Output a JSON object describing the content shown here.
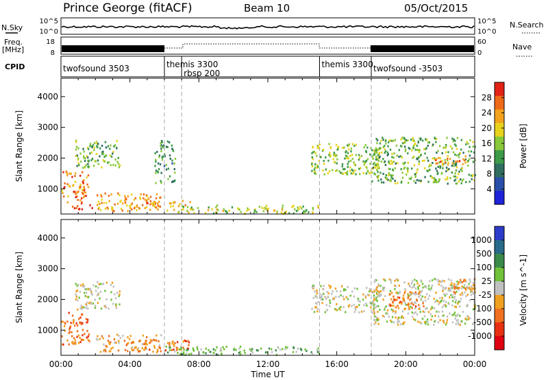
{
  "header": {
    "station": "Prince George (fitACF)",
    "beam": "Beam 10",
    "date": "05/Oct/2015"
  },
  "strip_labels": {
    "nsky": "N.Sky",
    "nsearch": "N.Search",
    "freq": "Freq.",
    "freq_unit": "[MHz]",
    "nave": "Nave",
    "cpid": "CPID",
    "nsky_ticks": [
      "10^5",
      "10^0"
    ],
    "freq_ticks": [
      "18",
      "8"
    ],
    "nave_ticks": [
      "60",
      "0"
    ]
  },
  "cpid_segments": [
    {
      "label": "twofsound 3503",
      "start": 0.0
    },
    {
      "label": "themis 3300",
      "start": 6.0
    },
    {
      "label": "rbsp 200",
      "start": 7.0
    },
    {
      "label": "themis 3300",
      "start": 15.0
    },
    {
      "label": "twofsound -3503",
      "start": 18.0
    }
  ],
  "chart_data": [
    {
      "type": "heatmap",
      "name": "power",
      "xlabel": "",
      "ylabel": "Slant Range [km]",
      "xlim": [
        0,
        24
      ],
      "ylim": [
        180,
        4600
      ],
      "yticks": [
        "1000",
        "2000",
        "3000",
        "4000"
      ],
      "colorbar_label": "Power [dB]",
      "colorbar_ticks": [
        "28",
        "24",
        "20",
        "16",
        "12",
        "8",
        "4"
      ],
      "colorbar_colors": [
        "#1e22d8",
        "#2a4fa8",
        "#2f6e60",
        "#3d9a48",
        "#88c83a",
        "#e7d21c",
        "#f2a21c",
        "#ef6a18",
        "#e22214"
      ],
      "regions": [
        {
          "t0": 0.0,
          "t1": 1.6,
          "r0": 550,
          "r1": 1600,
          "level": 0.85
        },
        {
          "t0": 0.6,
          "t1": 2.0,
          "r0": 350,
          "r1": 500,
          "level": 0.9
        },
        {
          "t0": 0.8,
          "t1": 3.4,
          "r0": 1700,
          "r1": 2600,
          "level": 0.45
        },
        {
          "t0": 2.0,
          "t1": 5.8,
          "r0": 300,
          "r1": 900,
          "level": 0.75
        },
        {
          "t0": 4.0,
          "t1": 7.5,
          "r0": 500,
          "r1": 650,
          "level": 0.8
        },
        {
          "t0": 5.4,
          "t1": 6.6,
          "r0": 1200,
          "r1": 2600,
          "level": 0.35
        },
        {
          "t0": 6.0,
          "t1": 15.0,
          "r0": 220,
          "r1": 500,
          "level": 0.55
        },
        {
          "t0": 14.5,
          "t1": 18.5,
          "r0": 1500,
          "r1": 2500,
          "level": 0.5
        },
        {
          "t0": 18.0,
          "t1": 24.0,
          "r0": 1200,
          "r1": 2700,
          "level": 0.45
        },
        {
          "t0": 21.5,
          "t1": 23.5,
          "r0": 1800,
          "r1": 2100,
          "level": 0.8
        }
      ]
    },
    {
      "type": "heatmap",
      "name": "velocity",
      "xlabel": "Time UT",
      "ylabel": "Slant Range [km]",
      "xlim": [
        0,
        24
      ],
      "ylim": [
        180,
        4600
      ],
      "xticks": [
        "00:00",
        "04:00",
        "08:00",
        "12:00",
        "16:00",
        "20:00",
        "00:00"
      ],
      "yticks": [
        "1000",
        "2000",
        "3000",
        "4000"
      ],
      "colorbar_label": "Velocity [m s^-1]",
      "colorbar_ticks": [
        "1000",
        "500",
        "100",
        "25",
        "-25",
        "-100",
        "-500",
        "-1000"
      ],
      "colorbar_colors": [
        "#2b3cc8",
        "#2a6a8a",
        "#3a8a4a",
        "#70c23a",
        "#c0c0c0",
        "#f0a020",
        "#f07020",
        "#e83010",
        "#e00010"
      ],
      "regions": [
        {
          "t0": 0.0,
          "t1": 1.6,
          "r0": 550,
          "r1": 1600,
          "level": -500
        },
        {
          "t0": 0.8,
          "t1": 3.4,
          "r0": 1700,
          "r1": 2600,
          "level": 0
        },
        {
          "t0": 2.0,
          "t1": 5.8,
          "r0": 300,
          "r1": 900,
          "level": -100
        },
        {
          "t0": 4.0,
          "t1": 7.5,
          "r0": 350,
          "r1": 700,
          "level": -500
        },
        {
          "t0": 6.0,
          "t1": 15.0,
          "r0": 220,
          "r1": 500,
          "level": 100
        },
        {
          "t0": 14.5,
          "t1": 18.5,
          "r0": 1600,
          "r1": 2500,
          "level": 0
        },
        {
          "t0": 18.0,
          "t1": 24.0,
          "r0": 1200,
          "r1": 2700,
          "level": 0
        },
        {
          "t0": 19.0,
          "t1": 21.0,
          "r0": 1700,
          "r1": 2300,
          "level": -500
        },
        {
          "t0": 22.5,
          "t1": 24.0,
          "r0": 2200,
          "r1": 2700,
          "level": -100
        }
      ]
    }
  ]
}
